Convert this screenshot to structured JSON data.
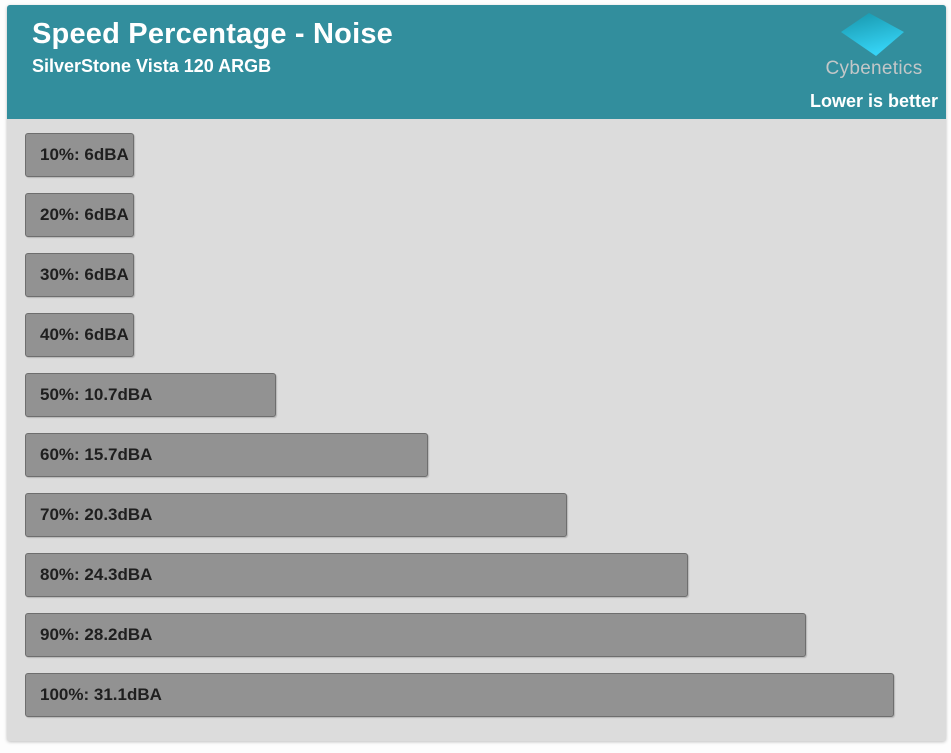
{
  "header": {
    "title": "Speed Percentage - Noise",
    "subtitle": "SilverStone Vista 120 ARGB",
    "brand": "Cybenetics",
    "note": "Lower is better"
  },
  "colors": {
    "header_bg": "#328E9D",
    "chart_bg": "#DCDCDC",
    "bar_fill": "#929292",
    "bar_border": "#6E6E6E",
    "bar_text": "#1F1F1F",
    "title_text": "#FFFFFF",
    "brand_text": "#C3C7C8",
    "logo_gradient_start": "#1795AA",
    "logo_gradient_end": "#35D3F5"
  },
  "chart_data": {
    "type": "bar",
    "orientation": "horizontal",
    "title": "Speed Percentage - Noise",
    "subtitle": "SilverStone Vista 120 ARGB",
    "annotation": "Lower is better",
    "unit": "dBA",
    "categories": [
      "10%",
      "20%",
      "30%",
      "40%",
      "50%",
      "60%",
      "70%",
      "80%",
      "90%",
      "100%"
    ],
    "values": [
      6,
      6,
      6,
      6,
      10.7,
      15.7,
      20.3,
      24.3,
      28.2,
      31.1
    ],
    "bar_labels": [
      "10%: 6dBA",
      "20%: 6dBA",
      "30%: 6dBA",
      "40%: 6dBA",
      "50%: 10.7dBA",
      "60%: 15.7dBA",
      "70%: 20.3dBA",
      "80%: 24.3dBA",
      "90%: 28.2dBA",
      "100%: 31.1dBA"
    ],
    "grid": false,
    "axes_visible": false,
    "legend_position": "none"
  }
}
